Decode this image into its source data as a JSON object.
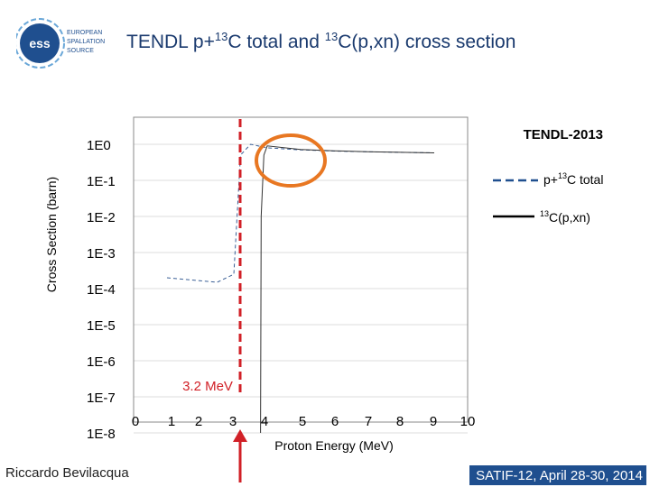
{
  "slide": {
    "title_main": "TENDL p+",
    "title_sup1": "13",
    "title_mid": "C total and ",
    "title_sup2": "13",
    "title_end": "C(p,xn) cross section",
    "logo_text": [
      "EUROPEAN",
      "SPALLATION",
      "SOURCE"
    ],
    "logo_mark": "ess",
    "footer_left": "Riccardo Bevilacqua",
    "footer_right": "SATIF-12, April 28-30, 2014"
  },
  "chart_data": {
    "type": "line",
    "title": "TENDL-2013",
    "xlabel": "Proton Energy (MeV)",
    "ylabel": "Cross Section (barn)",
    "x_ticks": [
      "0",
      "1",
      "2",
      "3",
      "4",
      "5",
      "6",
      "7",
      "8",
      "9",
      "10"
    ],
    "y_ticks": [
      "1E0",
      "1E-1",
      "1E-2",
      "1E-3",
      "1E-4",
      "1E-5",
      "1E-6",
      "1E-7",
      "1E-8"
    ],
    "xlim": [
      0,
      10
    ],
    "y_scale": "log",
    "grid": true,
    "legend_position": "top-right",
    "series": [
      {
        "name_prefix": "p+",
        "name_sup": "13",
        "name_suffix": "C total",
        "style": "dashed",
        "x": [
          1.0,
          2.5,
          3.0,
          3.2,
          3.5,
          4.0,
          5.0,
          6.0,
          7.0,
          8.0,
          9.0
        ],
        "y": [
          0.0002,
          0.00015,
          0.00025,
          0.5,
          1.0,
          0.8,
          0.7,
          0.65,
          0.62,
          0.6,
          0.58
        ]
      },
      {
        "name_prefix": "",
        "name_sup": "13",
        "name_suffix": "C(p,xn)",
        "style": "solid",
        "x": [
          3.8,
          3.82,
          3.9,
          4.0,
          5.0,
          6.0,
          7.0,
          8.0,
          9.0
        ],
        "y": [
          1e-08,
          0.01,
          0.5,
          0.9,
          0.72,
          0.66,
          0.62,
          0.6,
          0.58
        ]
      }
    ],
    "annotations": [
      {
        "label": "3.2 MeV",
        "x": 3.2,
        "color": "#d12027"
      }
    ],
    "highlight_color": "#e87722",
    "marker_color": "#d12027"
  }
}
